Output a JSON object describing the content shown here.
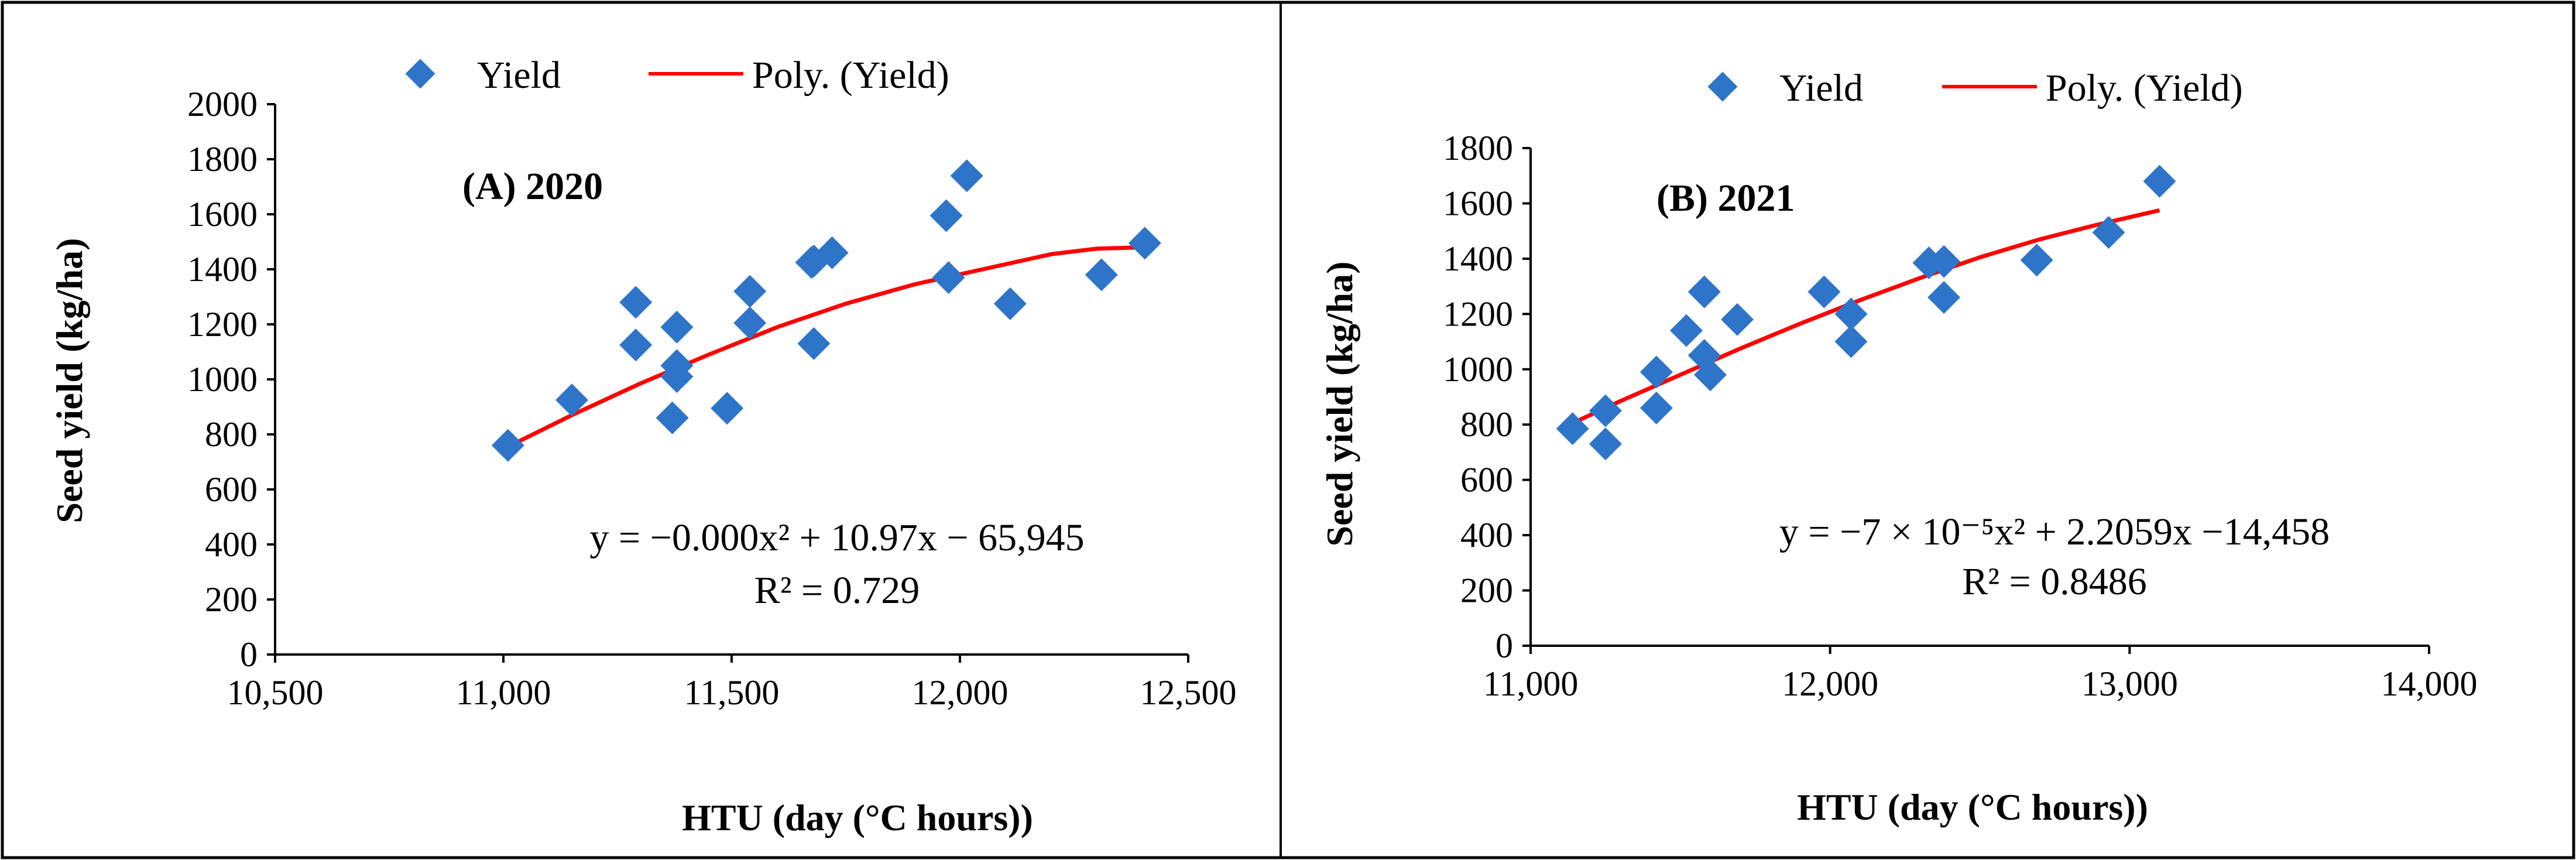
{
  "chart_data": [
    {
      "type": "scatter",
      "panel_label": "(A)  2020",
      "xlabel": "HTU (day (°C hours))",
      "ylabel": "Seed yield (kg/ha)",
      "xlim": [
        10500,
        12500
      ],
      "ylim": [
        0,
        2000
      ],
      "xticks": [
        10500,
        11000,
        11500,
        12000,
        12500
      ],
      "xtick_labels": [
        "10,500",
        "11,000",
        "11,500",
        "12,000",
        "12,500"
      ],
      "yticks": [
        0,
        200,
        400,
        600,
        800,
        1000,
        1200,
        1400,
        1600,
        1800,
        2000
      ],
      "ytick_labels": [
        "0",
        "200",
        "400",
        "600",
        "800",
        "1000",
        "1200",
        "1400",
        "1600",
        "1800",
        "2000"
      ],
      "legend": {
        "points": "Yield",
        "trend": "Poly. (Yield)",
        "position": "top"
      },
      "colors": {
        "points": "#2E75C9",
        "trend": "#FF0000"
      },
      "points": [
        [
          11010,
          760
        ],
        [
          11150,
          925
        ],
        [
          11290,
          1280
        ],
        [
          11290,
          1125
        ],
        [
          11370,
          860
        ],
        [
          11380,
          1190
        ],
        [
          11380,
          1010
        ],
        [
          11380,
          1050
        ],
        [
          11490,
          895
        ],
        [
          11540,
          1320
        ],
        [
          11540,
          1205
        ],
        [
          11675,
          1425
        ],
        [
          11680,
          1430
        ],
        [
          11680,
          1130
        ],
        [
          11720,
          1460
        ],
        [
          11970,
          1595
        ],
        [
          11975,
          1370
        ],
        [
          12015,
          1740
        ],
        [
          12110,
          1275
        ],
        [
          12310,
          1380
        ],
        [
          12405,
          1495
        ]
      ],
      "trendline": {
        "x": [
          11010,
          11150,
          11300,
          11450,
          11600,
          11750,
          11900,
          12050,
          12200,
          12300,
          12400
        ],
        "y": [
          755,
          870,
          985,
          1090,
          1190,
          1275,
          1345,
          1400,
          1455,
          1475,
          1480
        ]
      },
      "equation": "y = −0.000x² + 10.97x − 65,945",
      "r_squared": "R² = 0.729"
    },
    {
      "type": "scatter",
      "panel_label": "(B) 2021",
      "xlabel": "HTU (day (°C hours))",
      "ylabel": "Seed yield (kg/ha)",
      "xlim": [
        11000,
        14000
      ],
      "ylim": [
        0,
        1800
      ],
      "xticks": [
        11000,
        12000,
        13000,
        14000
      ],
      "xtick_labels": [
        "11,000",
        "12,000",
        "13,000",
        "14,000"
      ],
      "yticks": [
        0,
        200,
        400,
        600,
        800,
        1000,
        1200,
        1400,
        1600,
        1800
      ],
      "ytick_labels": [
        "0",
        "200",
        "400",
        "600",
        "800",
        "1000",
        "1200",
        "1400",
        "1600",
        "1800"
      ],
      "legend": {
        "points": "Yield",
        "trend": "Poly. (Yield)",
        "position": "top"
      },
      "colors": {
        "points": "#2E75C9",
        "trend": "#FF0000"
      },
      "points": [
        [
          11140,
          785
        ],
        [
          11250,
          730
        ],
        [
          11250,
          850
        ],
        [
          11420,
          860
        ],
        [
          11420,
          990
        ],
        [
          11520,
          1140
        ],
        [
          11580,
          1280
        ],
        [
          11580,
          1050
        ],
        [
          11600,
          980
        ],
        [
          11690,
          1180
        ],
        [
          11980,
          1280
        ],
        [
          12070,
          1200
        ],
        [
          12070,
          1100
        ],
        [
          12330,
          1385
        ],
        [
          12380,
          1390
        ],
        [
          12380,
          1260
        ],
        [
          12690,
          1395
        ],
        [
          12930,
          1495
        ],
        [
          13100,
          1680
        ]
      ],
      "trendline": {
        "x": [
          11140,
          11300,
          11500,
          11700,
          11900,
          12100,
          12300,
          12500,
          12700,
          12900,
          13100
        ],
        "y": [
          805,
          885,
          980,
          1075,
          1165,
          1250,
          1330,
          1405,
          1470,
          1525,
          1575
        ]
      },
      "equation": "y = −7 × 10⁻⁵x² + 2.2059x −14,458",
      "r_squared": "R² = 0.8486"
    }
  ]
}
